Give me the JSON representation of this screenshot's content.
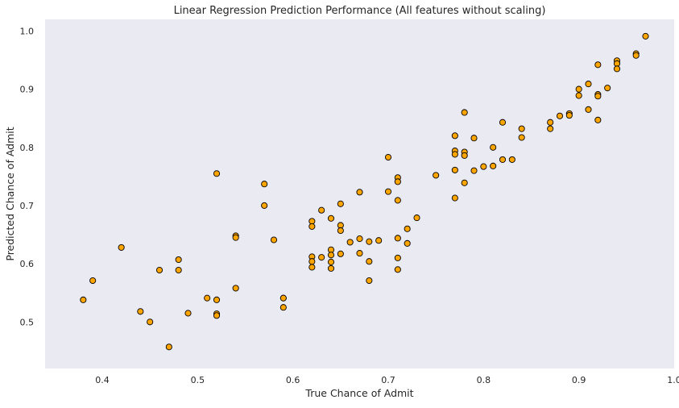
{
  "chart_data": {
    "type": "scatter",
    "title": "Linear Regression Prediction Performance (All features without scaling)",
    "xlabel": "True Chance of Admit",
    "ylabel": "Predicted Chance of Admit",
    "xlim": [
      0.34,
      1.0
    ],
    "ylim": [
      0.42,
      1.02
    ],
    "xticks": [
      "0.4",
      "0.5",
      "0.6",
      "0.7",
      "0.8",
      "0.9",
      "1.0"
    ],
    "xtick_values": [
      0.4,
      0.5,
      0.6,
      0.7,
      0.8,
      0.9,
      1.0
    ],
    "yticks": [
      "0.5",
      "0.6",
      "0.7",
      "0.8",
      "0.9",
      "1.0"
    ],
    "ytick_values": [
      0.5,
      0.6,
      0.7,
      0.8,
      0.9,
      1.0
    ],
    "grid": false,
    "marker_color": "#FFA500",
    "marker_edge_color": "#000000",
    "background_color": "#EAEAF2",
    "points": [
      [
        0.38,
        0.538
      ],
      [
        0.39,
        0.571
      ],
      [
        0.42,
        0.628
      ],
      [
        0.44,
        0.518
      ],
      [
        0.45,
        0.5
      ],
      [
        0.46,
        0.589
      ],
      [
        0.47,
        0.457
      ],
      [
        0.48,
        0.607
      ],
      [
        0.48,
        0.589
      ],
      [
        0.49,
        0.515
      ],
      [
        0.51,
        0.541
      ],
      [
        0.52,
        0.538
      ],
      [
        0.52,
        0.514
      ],
      [
        0.52,
        0.511
      ],
      [
        0.52,
        0.755
      ],
      [
        0.54,
        0.648
      ],
      [
        0.54,
        0.645
      ],
      [
        0.54,
        0.558
      ],
      [
        0.57,
        0.737
      ],
      [
        0.57,
        0.7
      ],
      [
        0.58,
        0.641
      ],
      [
        0.59,
        0.541
      ],
      [
        0.59,
        0.541
      ],
      [
        0.59,
        0.525
      ],
      [
        0.62,
        0.673
      ],
      [
        0.62,
        0.664
      ],
      [
        0.62,
        0.612
      ],
      [
        0.62,
        0.604
      ],
      [
        0.62,
        0.594
      ],
      [
        0.63,
        0.692
      ],
      [
        0.63,
        0.611
      ],
      [
        0.64,
        0.678
      ],
      [
        0.64,
        0.624
      ],
      [
        0.64,
        0.615
      ],
      [
        0.64,
        0.603
      ],
      [
        0.64,
        0.592
      ],
      [
        0.65,
        0.703
      ],
      [
        0.65,
        0.666
      ],
      [
        0.65,
        0.657
      ],
      [
        0.65,
        0.617
      ],
      [
        0.66,
        0.637
      ],
      [
        0.67,
        0.723
      ],
      [
        0.67,
        0.643
      ],
      [
        0.67,
        0.618
      ],
      [
        0.68,
        0.638
      ],
      [
        0.68,
        0.604
      ],
      [
        0.68,
        0.571
      ],
      [
        0.69,
        0.64
      ],
      [
        0.7,
        0.783
      ],
      [
        0.7,
        0.724
      ],
      [
        0.71,
        0.748
      ],
      [
        0.71,
        0.741
      ],
      [
        0.71,
        0.709
      ],
      [
        0.71,
        0.644
      ],
      [
        0.71,
        0.61
      ],
      [
        0.71,
        0.59
      ],
      [
        0.72,
        0.66
      ],
      [
        0.72,
        0.635
      ],
      [
        0.73,
        0.679
      ],
      [
        0.75,
        0.752
      ],
      [
        0.77,
        0.82
      ],
      [
        0.77,
        0.794
      ],
      [
        0.77,
        0.788
      ],
      [
        0.77,
        0.761
      ],
      [
        0.77,
        0.713
      ],
      [
        0.78,
        0.86
      ],
      [
        0.78,
        0.792
      ],
      [
        0.78,
        0.786
      ],
      [
        0.78,
        0.739
      ],
      [
        0.79,
        0.816
      ],
      [
        0.79,
        0.76
      ],
      [
        0.8,
        0.767
      ],
      [
        0.81,
        0.8
      ],
      [
        0.81,
        0.768
      ],
      [
        0.82,
        0.843
      ],
      [
        0.82,
        0.779
      ],
      [
        0.83,
        0.779
      ],
      [
        0.84,
        0.832
      ],
      [
        0.84,
        0.817
      ],
      [
        0.87,
        0.843
      ],
      [
        0.87,
        0.832
      ],
      [
        0.88,
        0.854
      ],
      [
        0.89,
        0.858
      ],
      [
        0.89,
        0.855
      ],
      [
        0.9,
        0.9
      ],
      [
        0.9,
        0.889
      ],
      [
        0.91,
        0.909
      ],
      [
        0.91,
        0.865
      ],
      [
        0.92,
        0.942
      ],
      [
        0.92,
        0.891
      ],
      [
        0.92,
        0.888
      ],
      [
        0.92,
        0.847
      ],
      [
        0.93,
        0.902
      ],
      [
        0.94,
        0.949
      ],
      [
        0.94,
        0.944
      ],
      [
        0.94,
        0.935
      ],
      [
        0.96,
        0.961
      ],
      [
        0.96,
        0.958
      ],
      [
        0.97,
        0.991
      ]
    ]
  }
}
